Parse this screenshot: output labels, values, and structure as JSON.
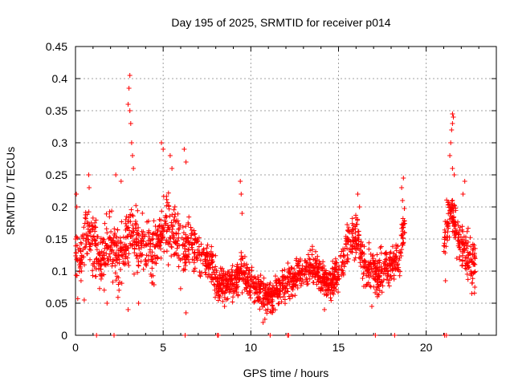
{
  "chart_data": {
    "type": "scatter",
    "title": "Day 195 of 2025, SRMTID for receiver p014",
    "xlabel": "GPS time / hours",
    "ylabel": "SRMTID / TECUs",
    "xlim": [
      0,
      24
    ],
    "ylim": [
      0,
      0.45
    ],
    "x_ticks": [
      0,
      5,
      10,
      15,
      20
    ],
    "y_ticks": [
      0,
      0.05,
      0.1,
      0.15,
      0.2,
      0.25,
      0.3,
      0.35,
      0.4,
      0.45
    ],
    "x_tick_labels": [
      "0",
      "5",
      "10",
      "15",
      "20"
    ],
    "y_tick_labels": [
      "0",
      "0.05",
      "0.1",
      "0.15",
      "0.2",
      "0.25",
      "0.3",
      "0.35",
      "0.4",
      "0.45"
    ],
    "grid": true,
    "marker": "+",
    "color": "#ff0000",
    "series": [
      {
        "name": "SRMTID",
        "segments": [
          {
            "x_start": 0.0,
            "x_end": 4.0,
            "baseline": [
              [
                0.0,
                0.13
              ],
              [
                0.3,
                0.12
              ],
              [
                0.6,
                0.17
              ],
              [
                1.0,
                0.14
              ],
              [
                1.5,
                0.12
              ],
              [
                2.0,
                0.13
              ],
              [
                2.5,
                0.12
              ],
              [
                3.0,
                0.15
              ],
              [
                3.5,
                0.15
              ],
              [
                4.0,
                0.14
              ]
            ],
            "spread": 0.045,
            "density": 95
          },
          {
            "x_start": 4.0,
            "x_end": 6.0,
            "baseline": [
              [
                4.0,
                0.14
              ],
              [
                4.5,
                0.13
              ],
              [
                5.0,
                0.17
              ],
              [
                5.5,
                0.16
              ],
              [
                6.0,
                0.13
              ]
            ],
            "spread": 0.045,
            "density": 95
          },
          {
            "x_start": 6.0,
            "x_end": 8.0,
            "baseline": [
              [
                6.0,
                0.13
              ],
              [
                6.5,
                0.14
              ],
              [
                7.0,
                0.13
              ],
              [
                7.5,
                0.12
              ],
              [
                8.0,
                0.09
              ]
            ],
            "spread": 0.035,
            "density": 90
          },
          {
            "x_start": 8.0,
            "x_end": 12.5,
            "baseline": [
              [
                8.0,
                0.08
              ],
              [
                9.0,
                0.08
              ],
              [
                9.5,
                0.1
              ],
              [
                10.0,
                0.08
              ],
              [
                10.5,
                0.07
              ],
              [
                11.0,
                0.06
              ],
              [
                11.5,
                0.07
              ],
              [
                12.0,
                0.08
              ],
              [
                12.5,
                0.09
              ]
            ],
            "spread": 0.025,
            "density": 110
          },
          {
            "x_start": 12.5,
            "x_end": 15.0,
            "baseline": [
              [
                12.5,
                0.09
              ],
              [
                13.0,
                0.1
              ],
              [
                13.5,
                0.11
              ],
              [
                14.0,
                0.09
              ],
              [
                14.5,
                0.08
              ],
              [
                15.0,
                0.09
              ]
            ],
            "spread": 0.025,
            "density": 110
          },
          {
            "x_start": 15.0,
            "x_end": 18.8,
            "baseline": [
              [
                15.0,
                0.1
              ],
              [
                15.5,
                0.14
              ],
              [
                16.0,
                0.15
              ],
              [
                16.5,
                0.11
              ],
              [
                17.0,
                0.1
              ],
              [
                17.5,
                0.1
              ],
              [
                18.0,
                0.11
              ],
              [
                18.5,
                0.12
              ],
              [
                18.8,
                0.19
              ]
            ],
            "spread": 0.03,
            "density": 100
          },
          {
            "x_start": 21.0,
            "x_end": 22.8,
            "baseline": [
              [
                21.0,
                0.14
              ],
              [
                21.3,
                0.2
              ],
              [
                21.6,
                0.17
              ],
              [
                22.0,
                0.14
              ],
              [
                22.5,
                0.12
              ],
              [
                22.8,
                0.11
              ]
            ],
            "spread": 0.035,
            "density": 110
          }
        ],
        "spikes": [
          {
            "x": 0.05,
            "y": 0.22
          },
          {
            "x": 0.08,
            "y": 0.2
          },
          {
            "x": 0.75,
            "y": 0.25
          },
          {
            "x": 0.78,
            "y": 0.23
          },
          {
            "x": 2.3,
            "y": 0.25
          },
          {
            "x": 2.6,
            "y": 0.24
          },
          {
            "x": 3.1,
            "y": 0.405
          },
          {
            "x": 3.05,
            "y": 0.385
          },
          {
            "x": 3.0,
            "y": 0.36
          },
          {
            "x": 3.1,
            "y": 0.35
          },
          {
            "x": 3.15,
            "y": 0.33
          },
          {
            "x": 3.2,
            "y": 0.3
          },
          {
            "x": 3.25,
            "y": 0.28
          },
          {
            "x": 3.3,
            "y": 0.26
          },
          {
            "x": 4.9,
            "y": 0.3
          },
          {
            "x": 5.0,
            "y": 0.29
          },
          {
            "x": 5.4,
            "y": 0.28
          },
          {
            "x": 5.5,
            "y": 0.26
          },
          {
            "x": 6.2,
            "y": 0.29
          },
          {
            "x": 6.3,
            "y": 0.27
          },
          {
            "x": 9.4,
            "y": 0.24
          },
          {
            "x": 9.45,
            "y": 0.22
          },
          {
            "x": 9.5,
            "y": 0.19
          },
          {
            "x": 16.1,
            "y": 0.22
          },
          {
            "x": 16.2,
            "y": 0.2
          },
          {
            "x": 18.7,
            "y": 0.245
          },
          {
            "x": 18.6,
            "y": 0.23
          },
          {
            "x": 18.65,
            "y": 0.21
          },
          {
            "x": 21.5,
            "y": 0.345
          },
          {
            "x": 21.55,
            "y": 0.34
          },
          {
            "x": 21.5,
            "y": 0.33
          },
          {
            "x": 21.45,
            "y": 0.32
          },
          {
            "x": 21.4,
            "y": 0.3
          },
          {
            "x": 21.35,
            "y": 0.28
          },
          {
            "x": 21.5,
            "y": 0.26
          },
          {
            "x": 21.6,
            "y": 0.25
          },
          {
            "x": 22.2,
            "y": 0.24
          },
          {
            "x": 22.1,
            "y": 0.22
          },
          {
            "x": 3.6,
            "y": 0.05
          },
          {
            "x": 3.0,
            "y": 0.04
          },
          {
            "x": 6.3,
            "y": 0.035
          },
          {
            "x": 8.5,
            "y": 0.045
          },
          {
            "x": 10.8,
            "y": 0.025
          },
          {
            "x": 10.7,
            "y": 0.02
          },
          {
            "x": 14.2,
            "y": 0.04
          },
          {
            "x": 16.9,
            "y": 0.045
          },
          {
            "x": 1.8,
            "y": 0.05
          },
          {
            "x": 0.5,
            "y": 0.055
          },
          {
            "x": 22.6,
            "y": 0.065
          },
          {
            "x": 21.1,
            "y": 0.085
          }
        ],
        "zero_markers": [
          1.2,
          2.2,
          6.25,
          8.1,
          8.15,
          11.1,
          12.1,
          12.15,
          17.1,
          18.2,
          21.05,
          21.15
        ]
      }
    ]
  }
}
